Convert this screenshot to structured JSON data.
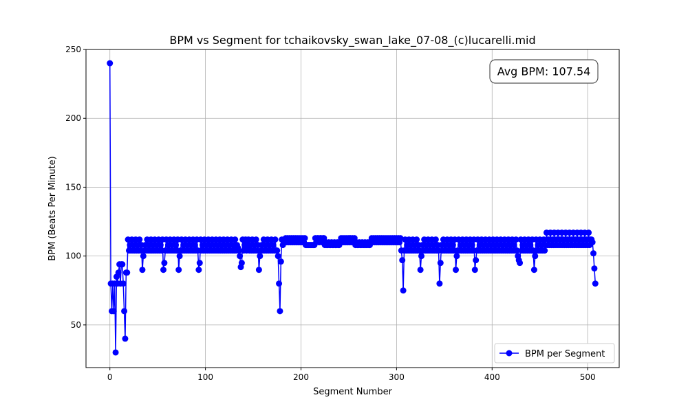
{
  "chart_data": {
    "type": "line",
    "title": "BPM vs Segment for tchaikovsky_swan_lake_07-08_(c)lucarelli.mid",
    "xlabel": "Segment Number",
    "ylabel": "BPM (Beats Per Minute)",
    "xlim": [
      -25,
      533
    ],
    "ylim": [
      19,
      250
    ],
    "xticks": [
      0,
      100,
      200,
      300,
      400,
      500
    ],
    "yticks": [
      50,
      100,
      150,
      200,
      250
    ],
    "grid": true,
    "legend_position": "lower right",
    "annotation": "Avg BPM: 107.54",
    "series": [
      {
        "name": "BPM per Segment",
        "color": "#0000ff",
        "marker": "circle",
        "segments": [
          {
            "x_start": 0,
            "x_end": 18,
            "y": [
              240,
              80,
              60,
              80,
              60,
              80,
              30,
              85,
              80,
              88,
              94,
              80,
              94,
              94,
              80,
              60,
              40,
              88,
              88
            ]
          },
          {
            "x_start": 19,
            "x_end": 132,
            "pattern": [
              112,
              104,
              108,
              104,
              112,
              104,
              108,
              104
            ]
          },
          {
            "x_start": 133,
            "x_end": 144,
            "y": [
              108,
              106,
              104,
              100,
              92,
              95,
              112,
              104,
              108,
              112,
              104,
              108
            ]
          },
          {
            "x_start": 145,
            "x_end": 174,
            "pattern": [
              112,
              104,
              108,
              104
            ]
          },
          {
            "x_start": 175,
            "x_end": 182,
            "y": [
              104,
              100,
              80,
              60,
              96,
              112,
              108,
              110
            ]
          },
          {
            "x_start": 183,
            "x_end": 204,
            "pattern": [
              110,
              113,
              110,
              113
            ]
          },
          {
            "x_start": 205,
            "x_end": 214,
            "pattern": [
              108
            ]
          },
          {
            "x_start": 215,
            "x_end": 224,
            "pattern": [
              113,
              110,
              113
            ]
          },
          {
            "x_start": 225,
            "x_end": 240,
            "pattern": [
              108,
              110,
              108
            ]
          },
          {
            "x_start": 241,
            "x_end": 256,
            "pattern": [
              110,
              113,
              110,
              113
            ]
          },
          {
            "x_start": 257,
            "x_end": 272,
            "pattern": [
              108,
              110,
              108
            ]
          },
          {
            "x_start": 273,
            "x_end": 304,
            "pattern": [
              110,
              113,
              110,
              113
            ]
          },
          {
            "x_start": 305,
            "x_end": 308,
            "y": [
              104,
              97,
              75,
              104
            ]
          },
          {
            "x_start": 309,
            "x_end": 426,
            "pattern": [
              112,
              104,
              108,
              104
            ]
          },
          {
            "x_start": 427,
            "x_end": 429,
            "y": [
              100,
              97,
              95
            ]
          },
          {
            "x_start": 430,
            "x_end": 456,
            "pattern": [
              112,
              104,
              108,
              104
            ]
          },
          {
            "x_start": 457,
            "x_end": 503,
            "pattern": [
              117,
              108,
              112,
              108
            ]
          },
          {
            "x_start": 504,
            "x_end": 508,
            "y": [
              112,
              110,
              102,
              91,
              80
            ]
          }
        ],
        "dips": [
          [
            34,
            90
          ],
          [
            35,
            100
          ],
          [
            56,
            90
          ],
          [
            57,
            95
          ],
          [
            72,
            90
          ],
          [
            73,
            100
          ],
          [
            93,
            90
          ],
          [
            94,
            95
          ],
          [
            156,
            90
          ],
          [
            157,
            100
          ],
          [
            325,
            90
          ],
          [
            326,
            100
          ],
          [
            345,
            80
          ],
          [
            346,
            95
          ],
          [
            362,
            90
          ],
          [
            363,
            100
          ],
          [
            382,
            90
          ],
          [
            383,
            97
          ],
          [
            444,
            90
          ],
          [
            445,
            100
          ]
        ]
      }
    ]
  }
}
